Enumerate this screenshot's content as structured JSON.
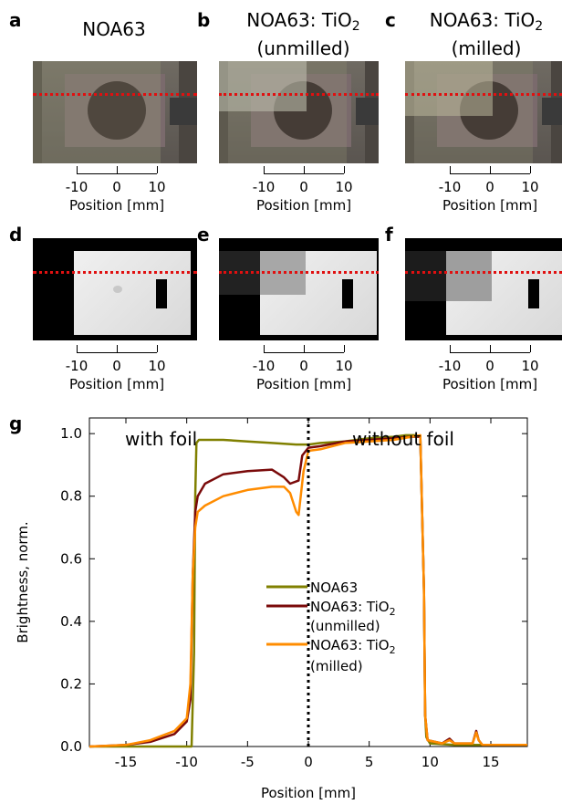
{
  "panels": {
    "a": {
      "letter": "a",
      "title": "NOA63"
    },
    "b": {
      "letter": "b",
      "title_main": "NOA63: TiO",
      "title_sub": "2",
      "title_line2": "(unmilled)"
    },
    "c": {
      "letter": "c",
      "title_main": "NOA63: TiO",
      "title_sub": "2",
      "title_line2": "(milled)"
    },
    "d": {
      "letter": "d"
    },
    "e": {
      "letter": "e"
    },
    "f": {
      "letter": "f"
    },
    "g": {
      "letter": "g"
    }
  },
  "scalebar": {
    "ticks": [
      "-10",
      "0",
      "10"
    ],
    "label": "Position [mm]"
  },
  "colors": {
    "noa63": "#808000",
    "unmilled": "#7a0a0a",
    "milled": "#ff8c00",
    "guide": "#e01010"
  },
  "chart_data": {
    "type": "line",
    "xlabel": "Position [mm]",
    "ylabel": "Brightness, norm.",
    "xlim": [
      -18,
      18
    ],
    "ylim": [
      0,
      1.05
    ],
    "xticks": [
      -15,
      -10,
      -5,
      0,
      5,
      10,
      15
    ],
    "xtick_labels": [
      "-15",
      "-10",
      "-5",
      "0",
      "5",
      "10",
      "15"
    ],
    "yticks": [
      0.0,
      0.2,
      0.4,
      0.6,
      0.8,
      1.0
    ],
    "ytick_labels": [
      "0.0",
      "0.2",
      "0.4",
      "0.6",
      "0.8",
      "1.0"
    ],
    "annotations": [
      {
        "text": "with foil"
      },
      {
        "text": "without foil"
      }
    ],
    "vline_x": 0,
    "grid": false,
    "legend_position": "center",
    "series": [
      {
        "name": "NOA63",
        "color": "#808000",
        "x": [
          -18,
          -15,
          -12,
          -10,
          -9.6,
          -9.4,
          -9.3,
          -9.2,
          -9,
          -7,
          -5,
          -3,
          -1,
          0,
          1,
          3,
          5,
          7,
          8,
          8.8,
          9.2,
          9.5,
          9.6,
          9.7,
          10,
          12,
          14,
          15,
          18
        ],
        "y": [
          0.0,
          0.0,
          0.0,
          0.0,
          0.0,
          0.3,
          0.8,
          0.97,
          0.98,
          0.98,
          0.975,
          0.97,
          0.965,
          0.965,
          0.97,
          0.975,
          0.985,
          0.99,
          0.995,
          0.995,
          0.99,
          0.5,
          0.1,
          0.03,
          0.01,
          0.005,
          0.005,
          0.005,
          0.005
        ]
      },
      {
        "name": "NOA63: TiO2 (unmilled)",
        "color": "#7a0a0a",
        "x": [
          -18,
          -15,
          -13,
          -11,
          -10,
          -9.7,
          -9.5,
          -9.3,
          -9.1,
          -8.5,
          -7,
          -5,
          -3,
          -2,
          -1.5,
          -0.8,
          -0.5,
          0,
          1,
          3,
          5,
          7,
          8.5,
          9.2,
          9.5,
          9.6,
          9.8,
          11,
          11.6,
          12,
          13.5,
          13.8,
          14,
          14.3,
          15,
          18
        ],
        "y": [
          0.0,
          0.005,
          0.015,
          0.04,
          0.08,
          0.15,
          0.55,
          0.75,
          0.8,
          0.84,
          0.87,
          0.88,
          0.885,
          0.86,
          0.84,
          0.85,
          0.93,
          0.955,
          0.96,
          0.975,
          0.98,
          0.985,
          0.99,
          0.99,
          0.5,
          0.1,
          0.02,
          0.01,
          0.025,
          0.01,
          0.01,
          0.05,
          0.02,
          0.005,
          0.005,
          0.005
        ]
      },
      {
        "name": "NOA63: TiO2 (milled)",
        "color": "#ff8c00",
        "x": [
          -18,
          -15,
          -13,
          -11,
          -10,
          -9.7,
          -9.5,
          -9.3,
          -9.1,
          -8.5,
          -7,
          -5,
          -3,
          -2,
          -1.5,
          -1,
          -0.8,
          -0.4,
          0,
          1,
          3,
          5,
          7,
          8.5,
          9.2,
          9.5,
          9.6,
          9.8,
          11,
          11.6,
          12,
          13.5,
          13.8,
          14,
          14.3,
          15,
          18
        ],
        "y": [
          0.0,
          0.005,
          0.02,
          0.05,
          0.09,
          0.2,
          0.55,
          0.7,
          0.75,
          0.77,
          0.8,
          0.82,
          0.83,
          0.83,
          0.81,
          0.75,
          0.74,
          0.88,
          0.945,
          0.95,
          0.97,
          0.975,
          0.98,
          0.99,
          0.995,
          0.5,
          0.1,
          0.02,
          0.01,
          0.02,
          0.01,
          0.01,
          0.045,
          0.02,
          0.005,
          0.005,
          0.005
        ]
      }
    ],
    "legend": [
      {
        "label_main": "NOA63",
        "label_sub": "",
        "label_line2": ""
      },
      {
        "label_main": "NOA63: TiO",
        "label_sub": "2",
        "label_line2": "(unmilled)"
      },
      {
        "label_main": "NOA63: TiO",
        "label_sub": "2",
        "label_line2": "(milled)"
      }
    ]
  }
}
